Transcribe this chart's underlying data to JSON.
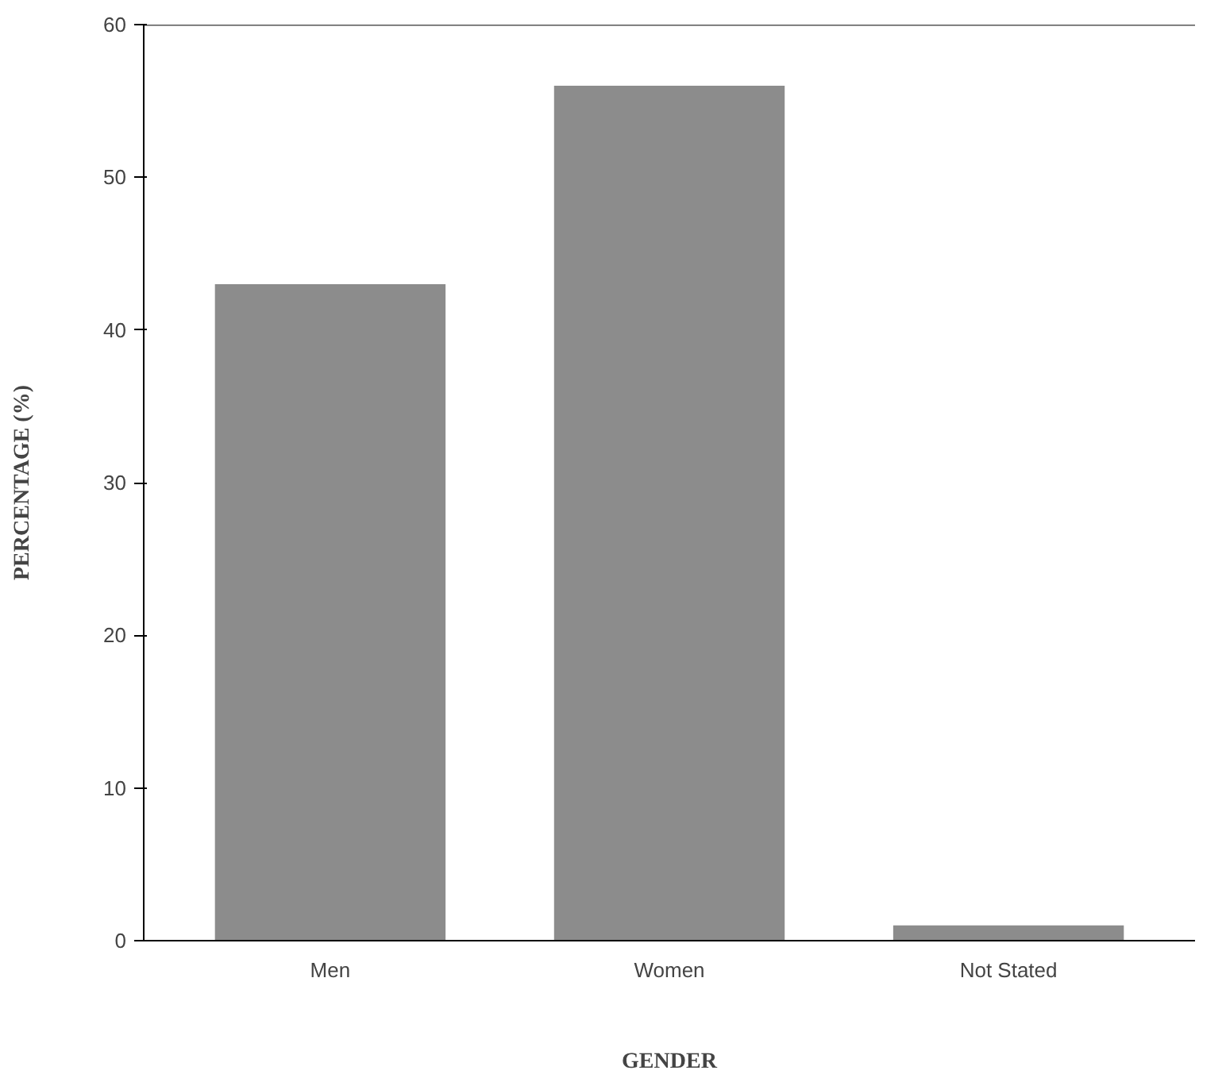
{
  "chart_data": {
    "type": "bar",
    "xlabel": "GENDER",
    "ylabel": "PERCENTAGE (%)",
    "categories": [
      "Men",
      "Women",
      "Not Stated"
    ],
    "values": [
      43,
      56,
      1
    ],
    "color": "#8c8c8c",
    "ylim": [
      0,
      60
    ],
    "yticks": [
      0,
      10,
      20,
      30,
      40,
      50,
      60
    ],
    "grid": false
  }
}
